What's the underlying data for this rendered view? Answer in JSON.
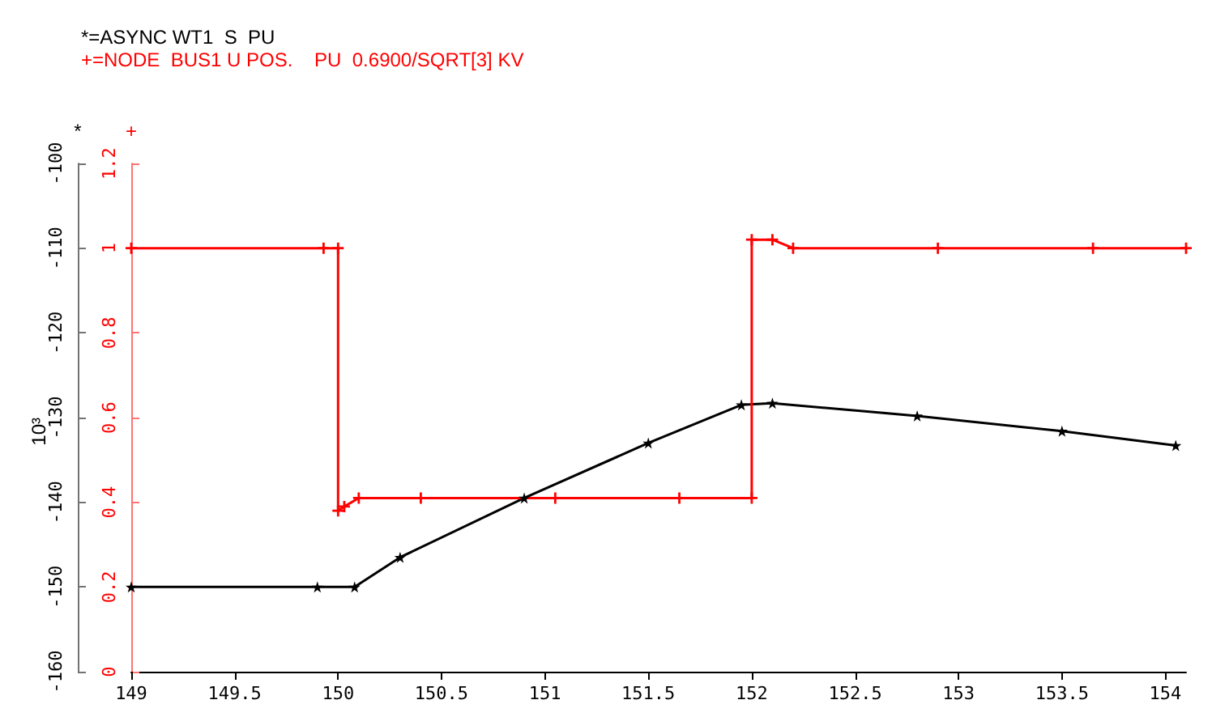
{
  "chart_data": {
    "type": "line",
    "ylabel": "*",
    "y2label": "+",
    "annotations": [
      "10³"
    ],
    "xlim": [
      149,
      154.1
    ],
    "xticks": [
      149,
      149.5,
      150,
      150.5,
      151,
      151.5,
      152,
      152.5,
      153,
      153.5,
      154
    ],
    "ylim": [
      -160,
      -100
    ],
    "yticks": [
      -160,
      -150,
      -140,
      -130,
      -120,
      -110,
      -100
    ],
    "y2lim": [
      0,
      1.2
    ],
    "y2ticks": [
      0,
      0.2,
      0.4,
      0.6,
      0.8,
      1,
      1.2
    ],
    "legend": "top left",
    "grid": false,
    "series": [
      {
        "name": "*=ASYNC WT1  S  PU",
        "color": "#000000",
        "marker": "star",
        "x": [
          149,
          149.9,
          150.08,
          150.3,
          150.9,
          151.5,
          151.95,
          152.1,
          152.8,
          153.5,
          154.05
        ],
        "values": [
          -150,
          -150,
          -150,
          -146.5,
          -139.5,
          -133,
          -128.5,
          -128.3,
          -129.8,
          -131.6,
          -133.3
        ]
      },
      {
        "name": "+=NODE  BUS1 U POS.    PU  0.6900/SQRT[3] KV",
        "color": "#ff0000",
        "marker": "cross",
        "axis": "y2",
        "x": [
          149,
          149.93,
          150,
          150,
          150.03,
          150.1,
          150.4,
          151.05,
          151.65,
          152,
          152,
          152.1,
          152.2,
          152.9,
          153.65,
          154.1
        ],
        "values": [
          1,
          1,
          1,
          0.38,
          0.39,
          0.41,
          0.41,
          0.41,
          0.41,
          0.41,
          1.02,
          1.02,
          1,
          1,
          1,
          1
        ]
      }
    ]
  }
}
